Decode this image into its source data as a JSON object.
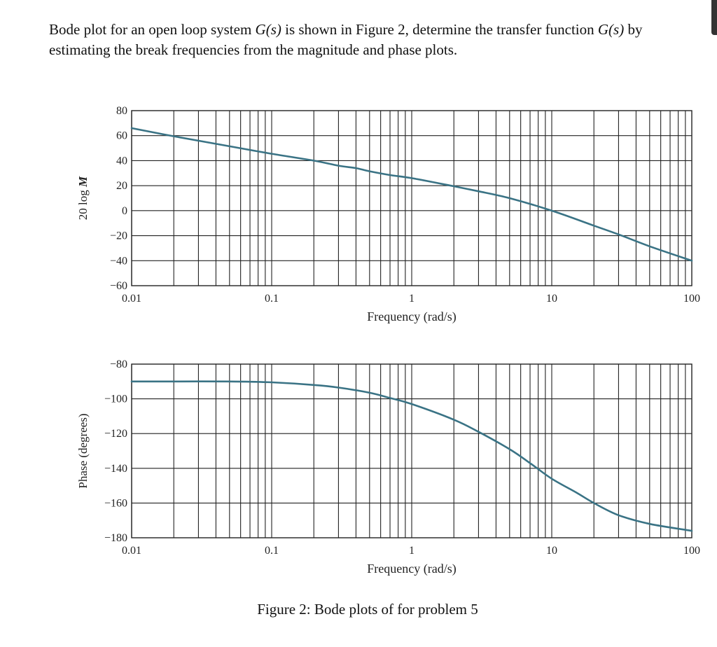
{
  "problem": {
    "part1": "Bode plot for an open loop system ",
    "gs1": "G(s)",
    "part2": " is shown in Figure 2, determine the transfer function ",
    "gs2": "G(s)",
    "part3": " by estimating the break frequencies from the magnitude and phase plots."
  },
  "figure_caption": "Figure 2: Bode plots of for problem 5",
  "colors": {
    "curve": "#3a7385",
    "grid": "#222222",
    "text": "#111111"
  },
  "chart_data": [
    {
      "type": "line",
      "ylabel": "20 log M",
      "xlabel": "Frequency (rad/s)",
      "xscale": "log",
      "xlim": [
        0.01,
        100
      ],
      "ylim": [
        -60,
        80
      ],
      "x_ticks": [
        0.01,
        0.1,
        1,
        10,
        100
      ],
      "x_tick_labels": [
        "0.01",
        "0.1",
        "1",
        "10",
        "100"
      ],
      "y_ticks": [
        80,
        60,
        40,
        20,
        0,
        -20,
        -40,
        -60
      ],
      "y_tick_labels": [
        "80",
        "60",
        "40",
        "20",
        "0",
        "−20",
        "−40",
        "−60"
      ],
      "grid": true,
      "series": [
        {
          "x": [
            0.01,
            0.02,
            0.05,
            0.1,
            0.2,
            0.3,
            0.4,
            0.5,
            0.7,
            1,
            2,
            3,
            5,
            10,
            20,
            30,
            50,
            100
          ],
          "values": [
            66,
            59.5,
            51.5,
            45.5,
            40,
            36,
            34,
            31.5,
            28.5,
            26,
            19.5,
            15.5,
            10,
            0,
            -12,
            -19,
            -28.5,
            -40
          ]
        }
      ]
    },
    {
      "type": "line",
      "ylabel": "Phase (degrees)",
      "xlabel": "Frequency (rad/s)",
      "xscale": "log",
      "xlim": [
        0.01,
        100
      ],
      "ylim": [
        -180,
        -80
      ],
      "x_ticks": [
        0.01,
        0.1,
        1,
        10,
        100
      ],
      "x_tick_labels": [
        "0.01",
        "0.1",
        "1",
        "10",
        "100"
      ],
      "y_ticks": [
        -80,
        -100,
        -120,
        -140,
        -160,
        -180
      ],
      "y_tick_labels": [
        "−80",
        "−100",
        "−120",
        "−140",
        "−160",
        "−180"
      ],
      "grid": true,
      "series": [
        {
          "x": [
            0.01,
            0.02,
            0.05,
            0.1,
            0.2,
            0.3,
            0.5,
            0.7,
            1,
            2,
            3,
            5,
            7,
            10,
            15,
            20,
            30,
            50,
            100
          ],
          "values": [
            -90,
            -90,
            -90,
            -90.5,
            -92,
            -93.5,
            -96.5,
            -99.5,
            -103,
            -112,
            -119,
            -129,
            -137,
            -146,
            -154,
            -160,
            -167,
            -172,
            -176
          ]
        }
      ]
    }
  ]
}
